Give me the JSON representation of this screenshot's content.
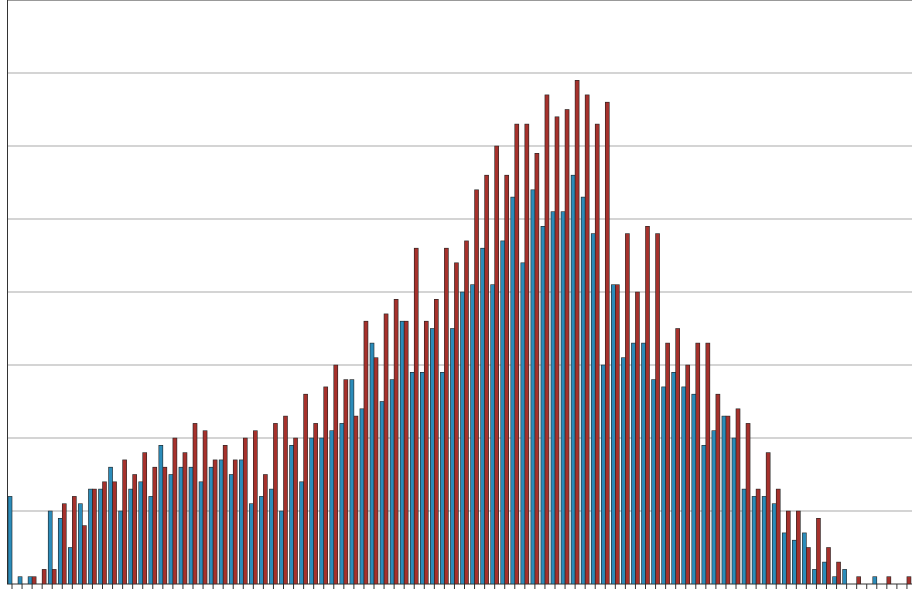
{
  "chart_data": {
    "type": "bar",
    "categories": [
      null,
      null,
      null,
      null,
      null,
      null,
      null,
      null,
      null,
      null,
      null,
      null,
      null,
      null,
      null,
      null,
      null,
      null,
      null,
      null,
      null,
      null,
      null,
      null,
      null,
      null,
      null,
      null,
      null,
      null,
      null,
      null,
      null,
      null,
      null,
      null,
      null,
      null,
      null,
      null,
      null,
      null,
      null,
      null,
      null,
      null,
      null,
      null,
      null,
      null,
      null,
      null,
      null,
      null,
      null,
      null,
      null,
      null,
      null,
      null,
      null,
      null,
      null,
      null,
      null,
      null,
      null,
      null,
      null,
      null,
      null,
      null,
      null,
      null,
      null,
      null,
      null,
      null,
      null,
      null,
      null,
      null,
      null,
      null,
      null,
      null,
      null,
      null,
      null,
      null
    ],
    "series": [
      {
        "color": "#2b8cba",
        "values": [
          1.2,
          0.1,
          0.1,
          0,
          1.0,
          0.9,
          0.5,
          1.1,
          1.3,
          1.3,
          1.6,
          1.0,
          1.3,
          1.4,
          1.2,
          1.9,
          1.5,
          1.6,
          1.6,
          1.4,
          1.6,
          1.7,
          1.5,
          1.7,
          1.1,
          1.2,
          1.3,
          1.0,
          1.9,
          1.4,
          2.0,
          2.0,
          2.1,
          2.2,
          2.8,
          2.4,
          3.3,
          2.5,
          2.8,
          3.6,
          2.9,
          2.9,
          3.5,
          2.9,
          3.5,
          4.0,
          4.1,
          4.6,
          4.1,
          4.7,
          5.3,
          4.4,
          5.4,
          4.9,
          5.1,
          5.1,
          5.6,
          5.3,
          4.8,
          3.0,
          4.1,
          3.1,
          3.3,
          3.3,
          2.8,
          2.7,
          2.9,
          2.7,
          2.6,
          1.9,
          2.1,
          2.3,
          2.0,
          1.3,
          1.2,
          1.2,
          1.1,
          0.7,
          0.6,
          0.7,
          0.2,
          0.3,
          0.1,
          0.2,
          0,
          0,
          0.1,
          0,
          0,
          0
        ]
      },
      {
        "color": "#a6312c",
        "values": [
          0,
          0,
          0.1,
          0.2,
          0.2,
          1.1,
          1.2,
          0.8,
          1.3,
          1.4,
          1.4,
          1.7,
          1.5,
          1.8,
          1.6,
          1.6,
          2.0,
          1.8,
          2.2,
          2.1,
          1.7,
          1.9,
          1.7,
          2.0,
          2.1,
          1.5,
          2.2,
          2.3,
          2.0,
          2.6,
          2.2,
          2.7,
          3.0,
          2.8,
          2.3,
          3.6,
          3.1,
          3.7,
          3.9,
          3.6,
          4.6,
          3.6,
          3.9,
          4.6,
          4.4,
          4.7,
          5.4,
          5.6,
          6.0,
          5.6,
          6.3,
          6.3,
          5.9,
          6.7,
          6.4,
          6.5,
          6.9,
          6.7,
          6.3,
          6.6,
          4.1,
          4.8,
          4.0,
          4.9,
          4.8,
          3.3,
          3.5,
          3.0,
          3.3,
          3.3,
          2.6,
          2.3,
          2.4,
          2.2,
          1.3,
          1.8,
          1.3,
          1.0,
          1.0,
          0.5,
          0.9,
          0.5,
          0.3,
          0,
          0.1,
          0,
          0,
          0.1,
          0,
          0.1
        ]
      }
    ],
    "ylim": [
      0,
      8
    ],
    "yticks": [
      0,
      1,
      2,
      3,
      4,
      5,
      6,
      7,
      8
    ],
    "grid": true
  }
}
